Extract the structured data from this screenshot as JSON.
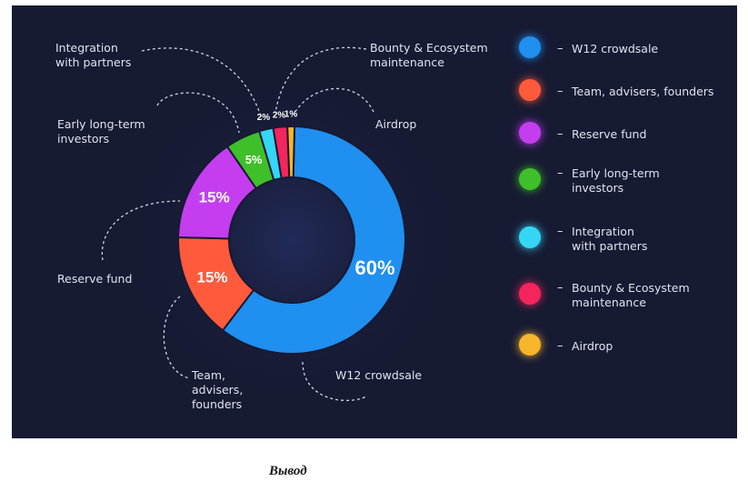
{
  "chart_data": {
    "type": "pie",
    "categories": [
      "W12 crowdsale",
      "Team, advisers, founders",
      "Reserve fund",
      "Early long-term investors",
      "Integration with partners",
      "Bounty & Ecosystem maintenance",
      "Airdrop"
    ],
    "values": [
      60,
      15,
      15,
      5,
      2,
      2,
      1
    ],
    "value_labels": [
      "60%",
      "15%",
      "15%",
      "5%",
      "2%",
      "2%",
      "1%"
    ],
    "colors": [
      "#1f8ff0",
      "#ff5a3c",
      "#c43ef0",
      "#3fbf2a",
      "#35d6f5",
      "#f4255c",
      "#f7b52b"
    ],
    "legend_placement": "right"
  },
  "callouts": {
    "integration": "Integration\nwith partners",
    "early": "Early long-term\ninvestors",
    "reserve": "Reserve fund",
    "team": "Team,\nadvisers,\nfounders",
    "crowdsale": "W12 crowdsale",
    "bounty": "Bounty & Ecosystem\nmaintenance",
    "airdrop": "Airdrop"
  },
  "legend": {
    "dash": "–",
    "items": [
      {
        "label": "W12 crowdsale",
        "icon": "blue-circle-icon"
      },
      {
        "label": "Team, advisers, founders",
        "icon": "orange-circle-icon"
      },
      {
        "label": "Reserve fund",
        "icon": "purple-circle-icon"
      },
      {
        "label": "Early long-term\ninvestors",
        "icon": "green-circle-icon"
      },
      {
        "label": "Integration\nwith partners",
        "icon": "cyan-circle-icon"
      },
      {
        "label": "Bounty & Ecosystem\nmaintenance",
        "icon": "pink-circle-icon"
      },
      {
        "label": "Airdrop",
        "icon": "yellow-circle-icon"
      }
    ]
  },
  "caption": "Вывод"
}
